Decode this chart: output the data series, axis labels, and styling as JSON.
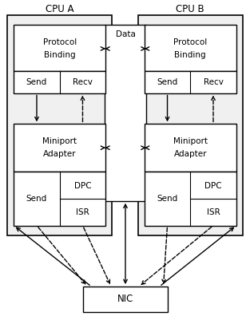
{
  "bg": "#ffffff",
  "fw": 3.13,
  "fh": 4.21,
  "dpi": 100,
  "cpu_a_label": "CPU A",
  "cpu_b_label": "CPU B",
  "data_label": "Data",
  "nic_label": "NIC",
  "proto_label1": "Protocol",
  "proto_label2": "Binding",
  "mini_label1": "Miniport",
  "mini_label2": "Adapter",
  "send_label": "Send",
  "recv_label": "Recv",
  "dpc_label": "DPC",
  "isr_label": "ISR",
  "gray": "#c8c8c8",
  "white": "#ffffff",
  "black": "#000000",
  "fs": 7.5,
  "fs_label": 8.5
}
